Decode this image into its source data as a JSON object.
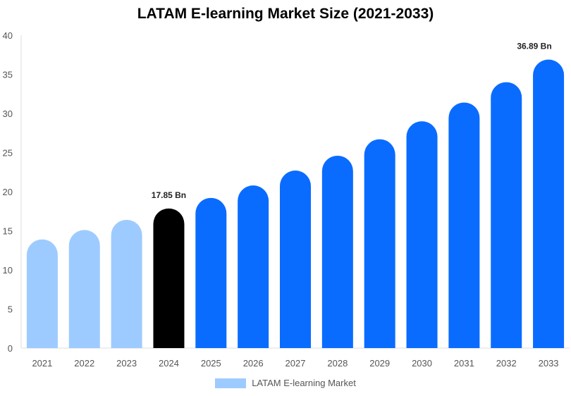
{
  "chart_data": {
    "type": "bar",
    "title": "LATAM E-learning Market Size (2021-2033)",
    "xlabel": "",
    "ylabel": "",
    "categories": [
      "2021",
      "2022",
      "2023",
      "2024",
      "2025",
      "2026",
      "2027",
      "2028",
      "2029",
      "2030",
      "2031",
      "2032",
      "2033"
    ],
    "series": [
      {
        "name": "LATAM E-learning Market",
        "values": [
          13.9,
          15.1,
          16.4,
          17.85,
          19.2,
          20.8,
          22.7,
          24.6,
          26.7,
          29.0,
          31.4,
          34.0,
          36.89
        ]
      }
    ],
    "bar_colors": [
      "#9ecbff",
      "#9ecbff",
      "#9ecbff",
      "#000000",
      "#0a6cff",
      "#0a6cff",
      "#0a6cff",
      "#0a6cff",
      "#0a6cff",
      "#0a6cff",
      "#0a6cff",
      "#0a6cff",
      "#0a6cff"
    ],
    "data_labels": [
      {
        "index": 3,
        "text": "17.85 Bn"
      },
      {
        "index": 12,
        "text": "36.89 Bn"
      }
    ],
    "ylim": [
      0,
      40
    ],
    "yticks": [
      0,
      5,
      10,
      15,
      20,
      25,
      30,
      35,
      40
    ],
    "grid": false,
    "legend_position": "bottom",
    "legend_color": "#9ecbff"
  }
}
